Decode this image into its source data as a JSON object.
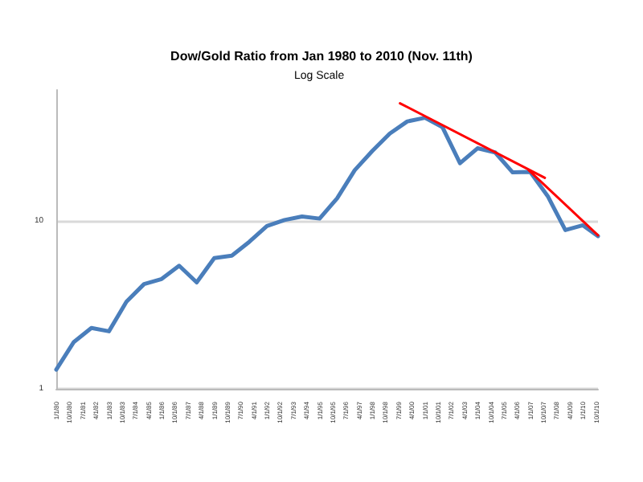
{
  "chart_data": {
    "type": "line",
    "title": "Dow/Gold Ratio from Jan 1980 to 2010 (Nov. 11th)",
    "annotations": [
      "Log Scale"
    ],
    "log": "y",
    "grid": "y",
    "marker": "none",
    "line_style": "solid",
    "xlim": [
      "1980-01-01",
      "2010-11-11"
    ],
    "ylim": [
      1,
      60
    ],
    "yticks": [
      1,
      10
    ],
    "xticks": [
      {
        "value": "1980-01-01",
        "label": "1/1/80"
      },
      {
        "value": "1980-10-01",
        "label": "10/1/80"
      },
      {
        "value": "1981-07-01",
        "label": "7/1/81"
      },
      {
        "value": "1982-04-01",
        "label": "4/1/82"
      },
      {
        "value": "1983-01-01",
        "label": "1/1/83"
      },
      {
        "value": "1983-10-01",
        "label": "10/1/83"
      },
      {
        "value": "1984-07-01",
        "label": "7/1/84"
      },
      {
        "value": "1985-04-01",
        "label": "4/1/85"
      },
      {
        "value": "1986-01-01",
        "label": "1/1/86"
      },
      {
        "value": "1986-10-01",
        "label": "10/1/86"
      },
      {
        "value": "1987-07-01",
        "label": "7/1/87"
      },
      {
        "value": "1988-04-01",
        "label": "4/1/88"
      },
      {
        "value": "1989-01-01",
        "label": "1/1/89"
      },
      {
        "value": "1989-10-01",
        "label": "10/1/89"
      },
      {
        "value": "1990-07-01",
        "label": "7/1/90"
      },
      {
        "value": "1991-04-01",
        "label": "4/1/91"
      },
      {
        "value": "1992-01-01",
        "label": "1/1/92"
      },
      {
        "value": "1992-10-01",
        "label": "10/1/92"
      },
      {
        "value": "1993-07-01",
        "label": "7/1/93"
      },
      {
        "value": "1994-04-01",
        "label": "4/1/94"
      },
      {
        "value": "1995-01-01",
        "label": "1/1/95"
      },
      {
        "value": "1995-10-01",
        "label": "10/1/95"
      },
      {
        "value": "1996-07-01",
        "label": "7/1/96"
      },
      {
        "value": "1997-04-01",
        "label": "4/1/97"
      },
      {
        "value": "1998-01-01",
        "label": "1/1/98"
      },
      {
        "value": "1998-10-01",
        "label": "10/1/98"
      },
      {
        "value": "1999-07-01",
        "label": "7/1/99"
      },
      {
        "value": "2000-04-01",
        "label": "4/1/00"
      },
      {
        "value": "2001-01-01",
        "label": "1/1/01"
      },
      {
        "value": "2001-10-01",
        "label": "10/1/01"
      },
      {
        "value": "2002-07-01",
        "label": "7/1/02"
      },
      {
        "value": "2003-04-01",
        "label": "4/1/03"
      },
      {
        "value": "2004-01-01",
        "label": "1/1/04"
      },
      {
        "value": "2004-10-01",
        "label": "10/1/04"
      },
      {
        "value": "2005-07-01",
        "label": "7/1/05"
      },
      {
        "value": "2006-04-01",
        "label": "4/1/06"
      },
      {
        "value": "2007-01-01",
        "label": "1/1/07"
      },
      {
        "value": "2007-10-01",
        "label": "10/1/07"
      },
      {
        "value": "2008-07-01",
        "label": "7/1/08"
      },
      {
        "value": "2009-04-01",
        "label": "4/1/09"
      },
      {
        "value": "2010-01-01",
        "label": "1/1/10"
      },
      {
        "value": "2010-10-01",
        "label": "10/1/10"
      }
    ],
    "series": [
      {
        "color": "#4a7ebb",
        "x": [
          "1980-01-01",
          "1981-01-01",
          "1982-01-01",
          "1983-01-01",
          "1984-01-01",
          "1985-01-01",
          "1986-01-01",
          "1987-01-01",
          "1988-01-01",
          "1989-01-01",
          "1990-01-01",
          "1991-01-01",
          "1992-01-01",
          "1993-01-01",
          "1994-01-01",
          "1995-01-01",
          "1996-01-01",
          "1997-01-01",
          "1998-01-01",
          "1999-01-01",
          "2000-01-01",
          "2001-01-01",
          "2002-01-01",
          "2003-01-01",
          "2004-01-01",
          "2005-01-01",
          "2006-01-01",
          "2007-01-01",
          "2008-01-01",
          "2009-01-01",
          "2010-01-01",
          "2010-11-11"
        ],
        "values": [
          1.3,
          1.9,
          2.3,
          2.2,
          3.3,
          4.2,
          4.5,
          5.4,
          4.3,
          6.0,
          6.2,
          7.5,
          9.3,
          10.1,
          10.6,
          10.3,
          13.6,
          20,
          26,
          33,
          39,
          41,
          36,
          22,
          27,
          25.5,
          19.4,
          19.5,
          14,
          8.8,
          9.4,
          8.1
        ]
      },
      {
        "color": "#ff0000",
        "x": [
          "1999-08-01",
          "2007-11-01"
        ],
        "values": [
          50,
          18
        ]
      },
      {
        "color": "#ff0000",
        "x": [
          "2006-12-01",
          "2010-11-11"
        ],
        "values": [
          20,
          8.2
        ]
      }
    ]
  }
}
